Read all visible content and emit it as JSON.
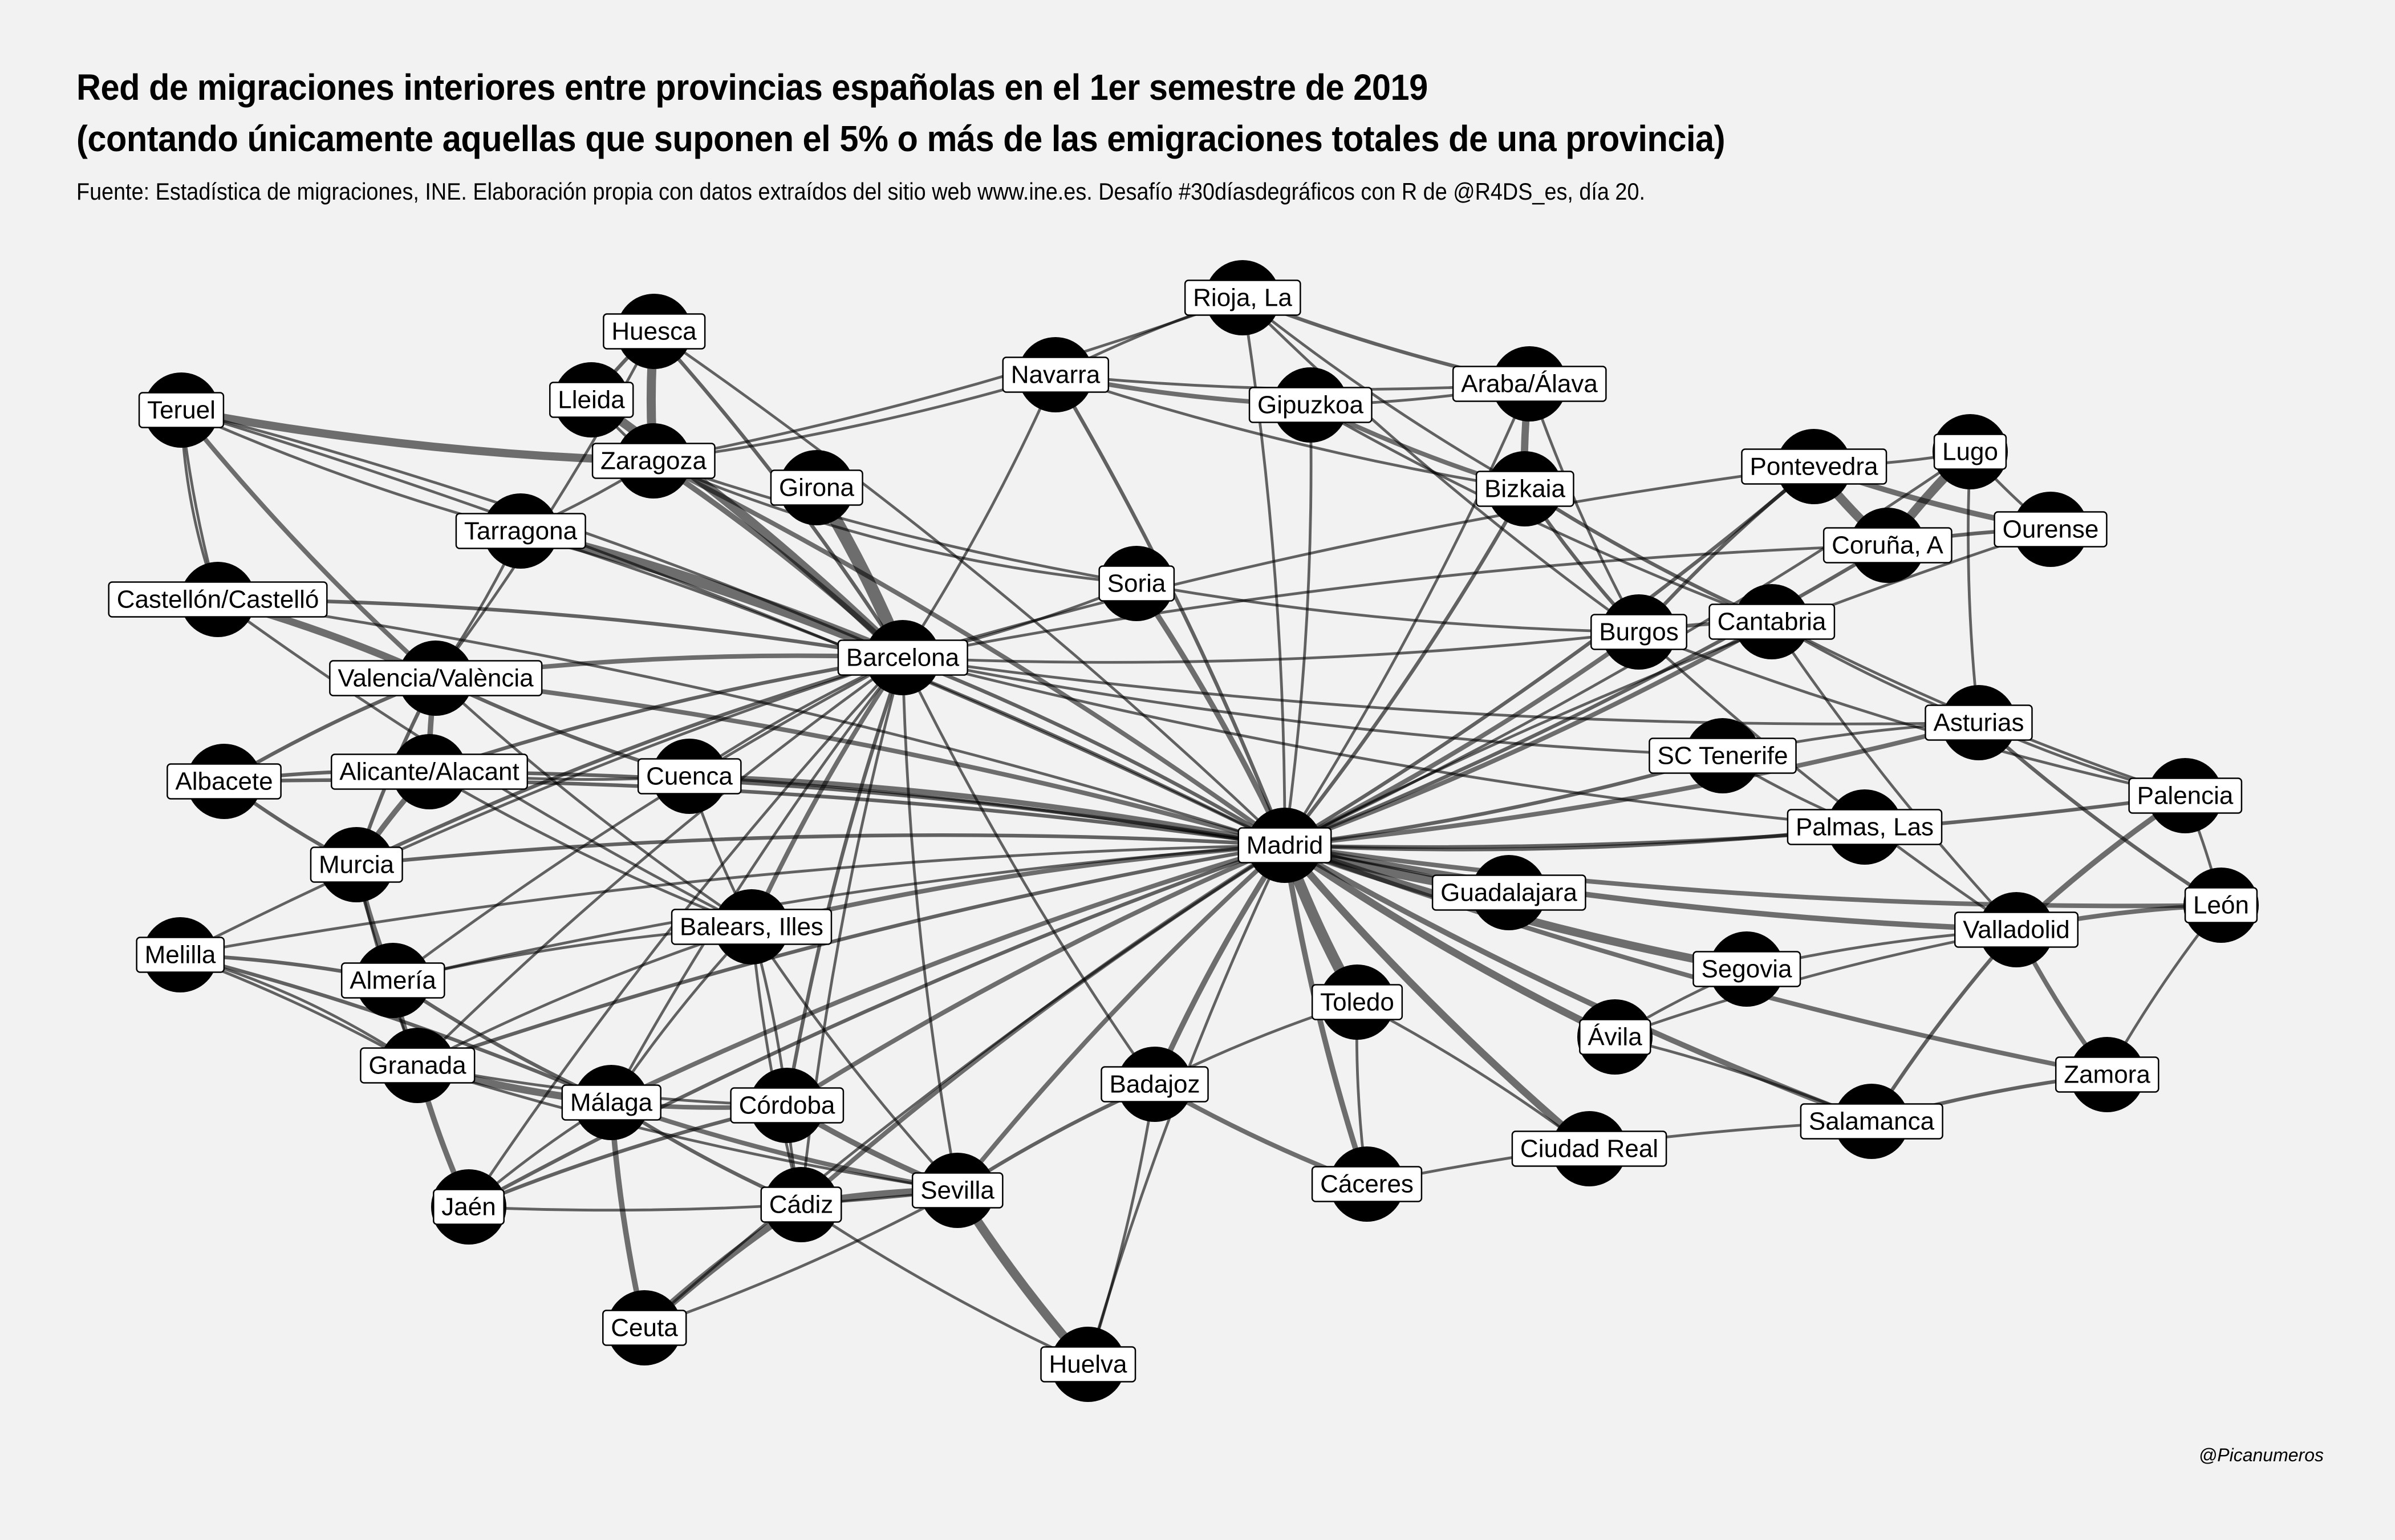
{
  "title_line1": "Red de migraciones interiores entre provincias españolas en el 1er semestre de 2019",
  "title_line2": "(contando únicamente aquellas que suponen el 5% o más de las emigraciones totales de una provincia)",
  "subtitle": "Fuente: Estadística de migraciones, INE. Elaboración propia con datos extraídos del sitio web www.ine.es. Desafío #30díasdegráficos con R de @R4DS_es, día 20.",
  "caption": "@Picanumeros",
  "colors": {
    "background": "#f2f2f2",
    "node": "#000000",
    "edge": "#000000",
    "label_box": "#ffffff"
  },
  "nodes": [
    "Madrid",
    "Barcelona",
    "Rioja, La",
    "Huesca",
    "Navarra",
    "Araba/Álava",
    "Gipuzkoa",
    "Teruel",
    "Lleida",
    "Zaragoza",
    "Girona",
    "Bizkaia",
    "Pontevedra",
    "Lugo",
    "Ourense",
    "Coruña, A",
    "Tarragona",
    "Soria",
    "Castellón/Castelló",
    "Burgos",
    "Cantabria",
    "Valencia/València",
    "Asturias",
    "SC Tenerife",
    "Albacete",
    "Alicante/Alacant",
    "Cuenca",
    "Palencia",
    "Palmas, Las",
    "Murcia",
    "Guadalajara",
    "León",
    "Valladolid",
    "Balears, Illes",
    "Melilla",
    "Segovia",
    "Almería",
    "Toledo",
    "Ávila",
    "Zamora",
    "Granada",
    "Badajoz",
    "Málaga",
    "Córdoba",
    "Salamanca",
    "Ciudad Real",
    "Cáceres",
    "Sevilla",
    "Jaén",
    "Cádiz",
    "Ceuta",
    "Huelva"
  ],
  "edges": [
    [
      "Madrid",
      "Barcelona",
      4
    ],
    [
      "Madrid",
      "Rioja, La",
      3
    ],
    [
      "Madrid",
      "Navarra",
      4
    ],
    [
      "Madrid",
      "Gipuzkoa",
      3
    ],
    [
      "Madrid",
      "Araba/Álava",
      3
    ],
    [
      "Madrid",
      "Bizkaia",
      4
    ],
    [
      "Madrid",
      "Soria",
      6
    ],
    [
      "Madrid",
      "Burgos",
      5
    ],
    [
      "Madrid",
      "Cantabria",
      5
    ],
    [
      "Madrid",
      "Asturias",
      5
    ],
    [
      "Madrid",
      "Coruña, A",
      4
    ],
    [
      "Madrid",
      "Pontevedra",
      4
    ],
    [
      "Madrid",
      "Lugo",
      3
    ],
    [
      "Madrid",
      "SC Tenerife",
      4
    ],
    [
      "Madrid",
      "Palmas, Las",
      4
    ],
    [
      "Madrid",
      "Palencia",
      4
    ],
    [
      "Madrid",
      "León",
      5
    ],
    [
      "Madrid",
      "Valladolid",
      6
    ],
    [
      "Madrid",
      "Segovia",
      9
    ],
    [
      "Madrid",
      "Guadalajara",
      10
    ],
    [
      "Madrid",
      "Ávila",
      8
    ],
    [
      "Madrid",
      "Toledo",
      12
    ],
    [
      "Madrid",
      "Zamora",
      5
    ],
    [
      "Madrid",
      "Salamanca",
      6
    ],
    [
      "Madrid",
      "Ciudad Real",
      8
    ],
    [
      "Madrid",
      "Cáceres",
      6
    ],
    [
      "Madrid",
      "Badajoz",
      6
    ],
    [
      "Madrid",
      "Huelva",
      3
    ],
    [
      "Madrid",
      "Sevilla",
      5
    ],
    [
      "Madrid",
      "Cádiz",
      5
    ],
    [
      "Madrid",
      "Córdoba",
      5
    ],
    [
      "Madrid",
      "Málaga",
      5
    ],
    [
      "Madrid",
      "Granada",
      4
    ],
    [
      "Madrid",
      "Jaén",
      4
    ],
    [
      "Madrid",
      "Ceuta",
      3
    ],
    [
      "Madrid",
      "Almería",
      3
    ],
    [
      "Madrid",
      "Murcia",
      4
    ],
    [
      "Madrid",
      "Alicante/Alacant",
      4
    ],
    [
      "Madrid",
      "Albacete",
      4
    ],
    [
      "Madrid",
      "Cuenca",
      6
    ],
    [
      "Madrid",
      "Valencia/València",
      5
    ],
    [
      "Madrid",
      "Castellón/Castelló",
      3
    ],
    [
      "Madrid",
      "Balears, Illes",
      5
    ],
    [
      "Madrid",
      "Teruel",
      3
    ],
    [
      "Madrid",
      "Huesca",
      3
    ],
    [
      "Madrid",
      "Zaragoza",
      5
    ],
    [
      "Madrid",
      "Tarragona",
      3
    ],
    [
      "Madrid",
      "Melilla",
      3
    ],
    [
      "Barcelona",
      "Girona",
      14
    ],
    [
      "Barcelona",
      "Lleida",
      10
    ],
    [
      "Barcelona",
      "Tarragona",
      12
    ],
    [
      "Barcelona",
      "Teruel",
      3
    ],
    [
      "Barcelona",
      "Huesca",
      4
    ],
    [
      "Barcelona",
      "Zaragoza",
      6
    ],
    [
      "Barcelona",
      "Navarra",
      3
    ],
    [
      "Barcelona",
      "Valencia/València",
      5
    ],
    [
      "Barcelona",
      "Castellón/Castelló",
      4
    ],
    [
      "Barcelona",
      "Balears, Illes",
      5
    ],
    [
      "Barcelona",
      "Murcia",
      4
    ],
    [
      "Barcelona",
      "Alicante/Alacant",
      4
    ],
    [
      "Barcelona",
      "Málaga",
      3
    ],
    [
      "Barcelona",
      "Granada",
      3
    ],
    [
      "Barcelona",
      "Córdoba",
      4
    ],
    [
      "Barcelona",
      "Sevilla",
      3
    ],
    [
      "Barcelona",
      "Cádiz",
      3
    ],
    [
      "Barcelona",
      "Almería",
      3
    ],
    [
      "Barcelona",
      "Jaén",
      3
    ],
    [
      "Barcelona",
      "Badajoz",
      3
    ],
    [
      "Barcelona",
      "Palmas, Las",
      3
    ],
    [
      "Barcelona",
      "SC Tenerife",
      3
    ],
    [
      "Barcelona",
      "Asturias",
      3
    ],
    [
      "Barcelona",
      "Cuenca",
      3
    ],
    [
      "Barcelona",
      "Soria",
      3
    ],
    [
      "Barcelona",
      "Melilla",
      3
    ],
    [
      "Barcelona",
      "Burgos",
      3
    ],
    [
      "Huesca",
      "Zaragoza",
      10
    ],
    [
      "Huesca",
      "Lleida",
      4
    ],
    [
      "Teruel",
      "Zaragoza",
      9
    ],
    [
      "Teruel",
      "Valencia/València",
      5
    ],
    [
      "Teruel",
      "Castellón/Castelló",
      3
    ],
    [
      "Teruel",
      "Tarragona",
      3
    ],
    [
      "Zaragoza",
      "Navarra",
      3
    ],
    [
      "Zaragoza",
      "Rioja, La",
      3
    ],
    [
      "Zaragoza",
      "Soria",
      3
    ],
    [
      "Lleida",
      "Zaragoza",
      3
    ],
    [
      "Tarragona",
      "Zaragoza",
      3
    ],
    [
      "Rioja, La",
      "Navarra",
      3
    ],
    [
      "Rioja, La",
      "Araba/Álava",
      4
    ],
    [
      "Rioja, La",
      "Bizkaia",
      3
    ],
    [
      "Rioja, La",
      "Burgos",
      3
    ],
    [
      "Navarra",
      "Gipuzkoa",
      5
    ],
    [
      "Navarra",
      "Araba/Álava",
      3
    ],
    [
      "Navarra",
      "Bizkaia",
      3
    ],
    [
      "Gipuzkoa",
      "Bizkaia",
      5
    ],
    [
      "Gipuzkoa",
      "Araba/Álava",
      3
    ],
    [
      "Araba/Álava",
      "Bizkaia",
      8
    ],
    [
      "Bizkaia",
      "Burgos",
      4
    ],
    [
      "Bizkaia",
      "Cantabria",
      4
    ],
    [
      "Araba/Álava",
      "Burgos",
      3
    ],
    [
      "Gipuzkoa",
      "Cantabria",
      3
    ],
    [
      "Pontevedra",
      "Coruña, A",
      10
    ],
    [
      "Pontevedra",
      "Ourense",
      6
    ],
    [
      "Pontevedra",
      "Lugo",
      3
    ],
    [
      "Lugo",
      "Coruña, A",
      10
    ],
    [
      "Lugo",
      "Ourense",
      3
    ],
    [
      "Ourense",
      "Coruña, A",
      4
    ],
    [
      "Lugo",
      "Asturias",
      3
    ],
    [
      "Coruña, A",
      "Barcelona",
      3
    ],
    [
      "Pontevedra",
      "Barcelona",
      3
    ],
    [
      "Ourense",
      "Madrid",
      3
    ],
    [
      "Pontevedra",
      "Burgos",
      4
    ],
    [
      "Cantabria",
      "Burgos",
      4
    ],
    [
      "Cantabria",
      "Asturias",
      3
    ],
    [
      "Cantabria",
      "Palencia",
      3
    ],
    [
      "Cantabria",
      "Valladolid",
      3
    ],
    [
      "Asturias",
      "León",
      4
    ],
    [
      "Asturias",
      "Palencia",
      3
    ],
    [
      "Asturias",
      "SC Tenerife",
      3
    ],
    [
      "SC Tenerife",
      "Palmas, Las",
      3
    ],
    [
      "Burgos",
      "Palencia",
      3
    ],
    [
      "Burgos",
      "Valladolid",
      3
    ],
    [
      "Palencia",
      "Valladolid",
      6
    ],
    [
      "León",
      "Valladolid",
      5
    ],
    [
      "León",
      "Zamora",
      3
    ],
    [
      "León",
      "Palencia",
      3
    ],
    [
      "Valladolid",
      "Zamora",
      5
    ],
    [
      "Valladolid",
      "Salamanca",
      4
    ],
    [
      "Valladolid",
      "Segovia",
      3
    ],
    [
      "Valladolid",
      "Ávila",
      3
    ],
    [
      "Zamora",
      "Salamanca",
      4
    ],
    [
      "Segovia",
      "Ávila",
      3
    ],
    [
      "Salamanca",
      "Ávila",
      3
    ],
    [
      "Salamanca",
      "Cáceres",
      3
    ],
    [
      "Toledo",
      "Cáceres",
      3
    ],
    [
      "Toledo",
      "Badajoz",
      3
    ],
    [
      "Badajoz",
      "Cáceres",
      5
    ],
    [
      "Badajoz",
      "Sevilla",
      4
    ],
    [
      "Ciudad Real",
      "Toledo",
      3
    ],
    [
      "Guadalajara",
      "Cuenca",
      3
    ],
    [
      "Valencia/València",
      "Castellón/Castelló",
      8
    ],
    [
      "Valencia/València",
      "Alicante/Alacant",
      6
    ],
    [
      "Valencia/València",
      "Cuenca",
      4
    ],
    [
      "Valencia/València",
      "Albacete",
      4
    ],
    [
      "Valencia/València",
      "Tarragona",
      3
    ],
    [
      "Valencia/València",
      "Murcia",
      4
    ],
    [
      "Valencia/València",
      "Balears, Illes",
      3
    ],
    [
      "Valencia/València",
      "Huesca",
      3
    ],
    [
      "Alicante/Alacant",
      "Murcia",
      6
    ],
    [
      "Alicante/Alacant",
      "Albacete",
      4
    ],
    [
      "Alicante/Alacant",
      "Cuenca",
      3
    ],
    [
      "Alicante/Alacant",
      "Balears, Illes",
      3
    ],
    [
      "Albacete",
      "Murcia",
      4
    ],
    [
      "Murcia",
      "Almería",
      6
    ],
    [
      "Murcia",
      "Granada",
      3
    ],
    [
      "Almería",
      "Granada",
      5
    ],
    [
      "Almería",
      "Málaga",
      4
    ],
    [
      "Almería",
      "Melilla",
      4
    ],
    [
      "Granada",
      "Málaga",
      8
    ],
    [
      "Granada",
      "Jaén",
      6
    ],
    [
      "Granada",
      "Córdoba",
      3
    ],
    [
      "Granada",
      "Sevilla",
      3
    ],
    [
      "Granada",
      "Melilla",
      3
    ],
    [
      "Málaga",
      "Córdoba",
      5
    ],
    [
      "Málaga",
      "Sevilla",
      5
    ],
    [
      "Málaga",
      "Cádiz",
      4
    ],
    [
      "Málaga",
      "Ceuta",
      6
    ],
    [
      "Málaga",
      "Melilla",
      4
    ],
    [
      "Málaga",
      "Jaén",
      3
    ],
    [
      "Córdoba",
      "Sevilla",
      6
    ],
    [
      "Córdoba",
      "Jaén",
      4
    ],
    [
      "Córdoba",
      "Cádiz",
      3
    ],
    [
      "Córdoba",
      "Balears, Illes",
      3
    ],
    [
      "Sevilla",
      "Cádiz",
      8
    ],
    [
      "Sevilla",
      "Huelva",
      10
    ],
    [
      "Cádiz",
      "Ceuta",
      8
    ],
    [
      "Cádiz",
      "Huelva",
      3
    ],
    [
      "Jaén",
      "Sevilla",
      3
    ],
    [
      "Ceuta",
      "Sevilla",
      3
    ],
    [
      "Balears, Illes",
      "Sevilla",
      3
    ],
    [
      "Balears, Illes",
      "Granada",
      3
    ],
    [
      "Balears, Illes",
      "Málaga",
      3
    ],
    [
      "Balears, Illes",
      "Cádiz",
      3
    ],
    [
      "Balears, Illes",
      "Almería",
      3
    ],
    [
      "Huelva",
      "Badajoz",
      3
    ],
    [
      "Soria",
      "Burgos",
      3
    ],
    [
      "Soria",
      "Zaragoza",
      3
    ],
    [
      "Cuenca",
      "Balears, Illes",
      3
    ],
    [
      "Melilla",
      "Granada",
      3
    ],
    [
      "Castellón/Castelló",
      "Balears, Illes",
      3
    ],
    [
      "Castellón/Castelló",
      "Teruel",
      3
    ]
  ]
}
